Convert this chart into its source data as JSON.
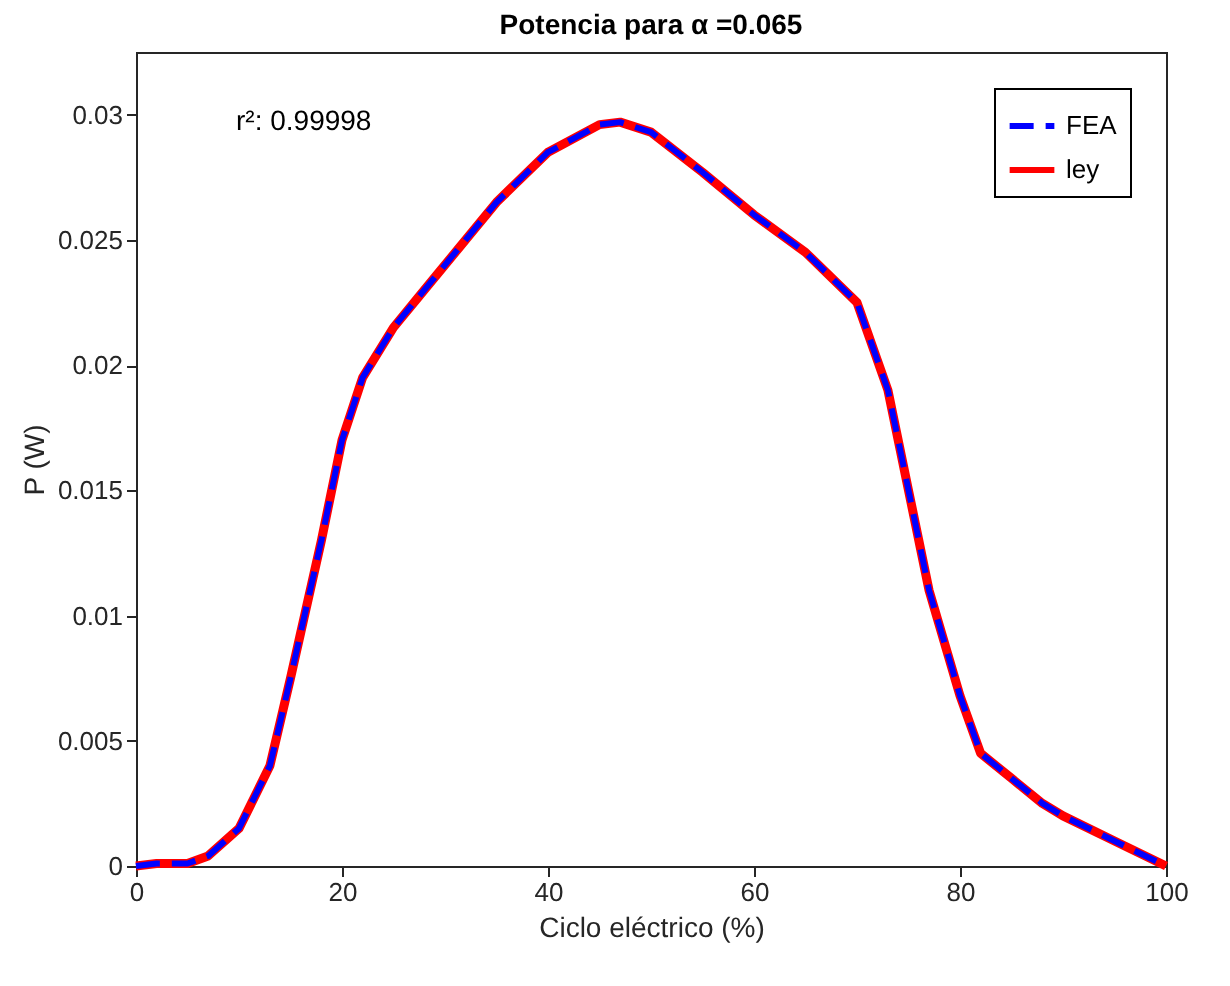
{
  "chart_data": {
    "type": "line",
    "title": "Potencia para α =0.065",
    "xlabel": "Ciclo eléctrico (%)",
    "ylabel": "P (W)",
    "x": [
      0,
      2,
      5,
      7,
      10,
      13,
      15,
      18,
      20,
      22,
      25,
      28,
      30,
      35,
      40,
      45,
      47,
      50,
      55,
      60,
      65,
      70,
      73,
      75,
      77,
      80,
      82,
      85,
      88,
      90,
      95,
      100
    ],
    "series": [
      {
        "name": "FEA",
        "color": "#0000ff",
        "line_style": "dashed",
        "values": [
          0,
          0.0001,
          0.0001,
          0.0004,
          0.0015,
          0.004,
          0.0075,
          0.013,
          0.017,
          0.0195,
          0.0215,
          0.023,
          0.024,
          0.0265,
          0.0285,
          0.0296,
          0.0297,
          0.0293,
          0.0277,
          0.026,
          0.0245,
          0.0225,
          0.019,
          0.015,
          0.011,
          0.0068,
          0.0045,
          0.0035,
          0.0025,
          0.002,
          0.001,
          0
        ]
      },
      {
        "name": "ley",
        "color": "#ff0000",
        "line_style": "solid",
        "values": [
          0,
          0.0001,
          0.0001,
          0.0004,
          0.0015,
          0.004,
          0.0075,
          0.013,
          0.017,
          0.0195,
          0.0215,
          0.023,
          0.024,
          0.0265,
          0.0285,
          0.0296,
          0.0297,
          0.0293,
          0.0277,
          0.026,
          0.0245,
          0.0225,
          0.019,
          0.015,
          0.011,
          0.0068,
          0.0045,
          0.0035,
          0.0025,
          0.002,
          0.001,
          0
        ]
      }
    ],
    "xlim": [
      0,
      100
    ],
    "xticks": [
      0,
      20,
      40,
      60,
      80,
      100
    ],
    "ylim": [
      0,
      0.0325
    ],
    "yticks": [
      {
        "value": 0,
        "label": "0"
      },
      0.005,
      {
        "value": 0.01,
        "label": "0.01"
      },
      0.015,
      {
        "value": 0.02,
        "label": "0.02"
      },
      0.025,
      {
        "value": 0.03,
        "label": "0.03"
      }
    ],
    "annotations": [
      "r²: 0.99998"
    ],
    "legend": "top right",
    "grid": false
  }
}
